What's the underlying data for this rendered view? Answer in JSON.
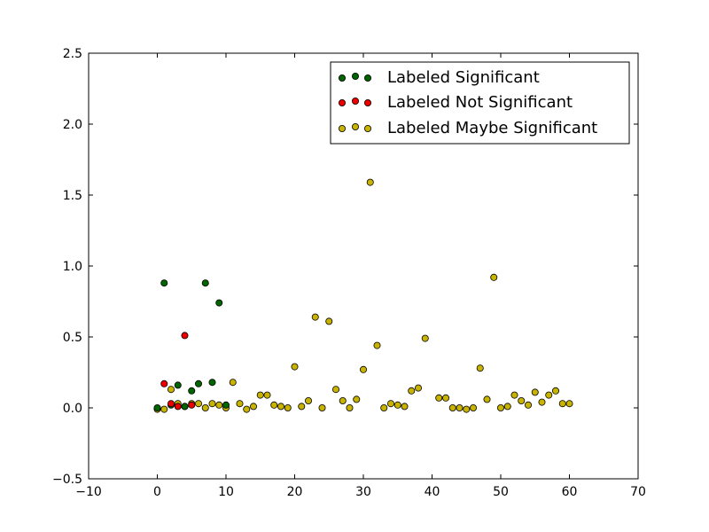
{
  "chart_data": {
    "type": "scatter",
    "title": "",
    "xlabel": "",
    "ylabel": "",
    "xlim": [
      -10,
      70
    ],
    "ylim": [
      -0.5,
      2.5
    ],
    "x_ticks": [
      -10,
      0,
      10,
      20,
      30,
      40,
      50,
      60,
      70
    ],
    "x_tick_labels": [
      "−10",
      "0",
      "10",
      "20",
      "30",
      "40",
      "50",
      "60",
      "70"
    ],
    "y_ticks": [
      -0.5,
      0.0,
      0.5,
      1.0,
      1.5,
      2.0,
      2.5
    ],
    "y_tick_labels": [
      "−0.5",
      "0.0",
      "0.5",
      "1.0",
      "1.5",
      "2.0",
      "2.5"
    ],
    "grid": false,
    "legend_position": "top-right",
    "series": [
      {
        "name": "Labeled Significant",
        "color": "#006400",
        "points": [
          [
            0,
            0.0
          ],
          [
            1,
            0.88
          ],
          [
            2,
            0.02
          ],
          [
            3,
            0.16
          ],
          [
            4,
            0.01
          ],
          [
            5,
            0.12
          ],
          [
            6,
            0.17
          ],
          [
            7,
            0.88
          ],
          [
            8,
            0.18
          ],
          [
            9,
            0.74
          ],
          [
            10,
            0.02
          ]
        ]
      },
      {
        "name": "Labeled Not Significant",
        "color": "#ee0000",
        "points": [
          [
            1,
            0.17
          ],
          [
            2,
            0.03
          ],
          [
            3,
            0.01
          ],
          [
            4,
            0.51
          ],
          [
            5,
            0.02
          ]
        ]
      },
      {
        "name": "Labeled Maybe Significant",
        "color": "#c8b400",
        "points": [
          [
            0,
            -0.01
          ],
          [
            1,
            -0.01
          ],
          [
            2,
            0.13
          ],
          [
            3,
            0.03
          ],
          [
            4,
            0.01
          ],
          [
            5,
            0.03
          ],
          [
            6,
            0.03
          ],
          [
            7,
            0.0
          ],
          [
            8,
            0.03
          ],
          [
            9,
            0.02
          ],
          [
            10,
            0.0
          ],
          [
            11,
            0.18
          ],
          [
            12,
            0.03
          ],
          [
            13,
            -0.01
          ],
          [
            14,
            0.01
          ],
          [
            15,
            0.09
          ],
          [
            16,
            0.09
          ],
          [
            17,
            0.02
          ],
          [
            18,
            0.01
          ],
          [
            19,
            0.0
          ],
          [
            20,
            0.29
          ],
          [
            21,
            0.01
          ],
          [
            22,
            0.05
          ],
          [
            23,
            0.64
          ],
          [
            24,
            0.0
          ],
          [
            25,
            0.61
          ],
          [
            26,
            0.13
          ],
          [
            27,
            0.05
          ],
          [
            28,
            0.0
          ],
          [
            29,
            0.06
          ],
          [
            30,
            0.27
          ],
          [
            31,
            1.59
          ],
          [
            32,
            0.44
          ],
          [
            33,
            0.0
          ],
          [
            34,
            0.03
          ],
          [
            35,
            0.02
          ],
          [
            36,
            0.01
          ],
          [
            37,
            0.12
          ],
          [
            38,
            0.14
          ],
          [
            39,
            0.49
          ],
          [
            41,
            0.07
          ],
          [
            42,
            0.07
          ],
          [
            43,
            0.0
          ],
          [
            44,
            0.0
          ],
          [
            45,
            -0.01
          ],
          [
            46,
            0.0
          ],
          [
            47,
            0.28
          ],
          [
            48,
            0.06
          ],
          [
            49,
            0.92
          ],
          [
            50,
            0.0
          ],
          [
            51,
            0.01
          ],
          [
            52,
            0.09
          ],
          [
            53,
            0.05
          ],
          [
            54,
            0.02
          ],
          [
            55,
            0.11
          ],
          [
            56,
            0.04
          ],
          [
            57,
            0.09
          ],
          [
            58,
            0.12
          ],
          [
            59,
            0.03
          ],
          [
            60,
            0.03
          ]
        ]
      }
    ]
  }
}
